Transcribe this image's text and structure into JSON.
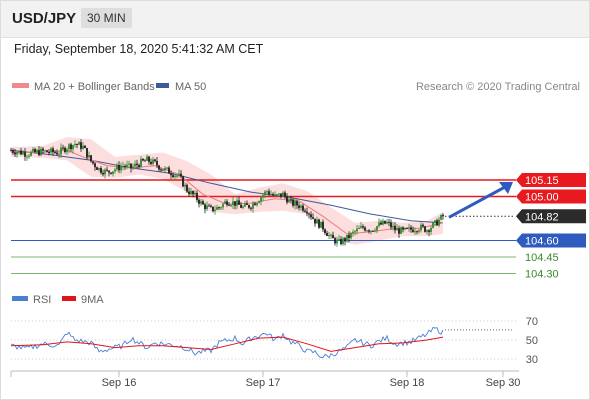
{
  "header": {
    "symbol": "USD/JPY",
    "timeframe": "30 MIN"
  },
  "timestamp": "Friday, September 18, 2020 5:41:32 AM CET",
  "legend": {
    "ma20_label": "MA 20 + Bollinger Bands",
    "ma50_label": "MA 50",
    "attribution": "Research © 2020 Trading Central",
    "rsi_label": "RSI",
    "rsi_ma_label": "9MA"
  },
  "colors": {
    "resistance": "#e8191f",
    "support_blue": "#2f5bbf",
    "support_green": "#7bb86d",
    "candle_up": "#2e8b2e",
    "candle_down": "#1a1a1a",
    "ma20": "#f07a7a",
    "band_fill": "#fbd3d3",
    "ma50": "#3d5a99",
    "rsi": "#4a7fd6",
    "rsi_ma": "#e0141b",
    "price_box": "#2b2b2b",
    "arrow": "#2f5bbf"
  },
  "chart_data": [
    {
      "type": "candlestick",
      "title": "USD/JPY",
      "ylim": [
        104.05,
        105.7
      ],
      "levels": [
        {
          "value": 105.15,
          "label": "105.15",
          "kind": "resistance"
        },
        {
          "value": 105.0,
          "label": "105.00",
          "kind": "resistance"
        },
        {
          "value": 104.82,
          "label": "104.82",
          "kind": "last-price"
        },
        {
          "value": 104.6,
          "label": "104.60",
          "kind": "pivot"
        },
        {
          "value": 104.45,
          "label": "104.45",
          "kind": "support"
        },
        {
          "value": 104.3,
          "label": "104.30",
          "kind": "support"
        }
      ],
      "close_path": [
        [
          0,
          105.42
        ],
        [
          4,
          105.39
        ],
        [
          8,
          105.41
        ],
        [
          12,
          105.4
        ],
        [
          14,
          105.45
        ],
        [
          16,
          105.48
        ],
        [
          18,
          105.45
        ],
        [
          20,
          105.32
        ],
        [
          22,
          105.25
        ],
        [
          24,
          105.22
        ],
        [
          26,
          105.25
        ],
        [
          28,
          105.28
        ],
        [
          30,
          105.26
        ],
        [
          32,
          105.3
        ],
        [
          34,
          105.33
        ],
        [
          36,
          105.3
        ],
        [
          38,
          105.25
        ],
        [
          40,
          105.22
        ],
        [
          42,
          105.18
        ],
        [
          44,
          105.06
        ],
        [
          46,
          105.0
        ],
        [
          48,
          104.92
        ],
        [
          50,
          104.88
        ],
        [
          52,
          104.9
        ],
        [
          54,
          104.96
        ],
        [
          56,
          104.94
        ],
        [
          58,
          104.9
        ],
        [
          60,
          104.92
        ],
        [
          62,
          104.98
        ],
        [
          64,
          105.05
        ],
        [
          66,
          105.0
        ],
        [
          68,
          105.02
        ],
        [
          70,
          104.94
        ],
        [
          72,
          104.92
        ],
        [
          74,
          104.88
        ],
        [
          76,
          104.78
        ],
        [
          78,
          104.72
        ],
        [
          80,
          104.62
        ],
        [
          82,
          104.58
        ],
        [
          84,
          104.62
        ],
        [
          86,
          104.68
        ],
        [
          88,
          104.72
        ],
        [
          90,
          104.7
        ],
        [
          92,
          104.74
        ],
        [
          94,
          104.76
        ],
        [
          96,
          104.7
        ],
        [
          98,
          104.68
        ],
        [
          100,
          104.7
        ],
        [
          102,
          104.72
        ],
        [
          104,
          104.7
        ],
        [
          106,
          104.75
        ],
        [
          108,
          104.82
        ]
      ],
      "ma20": [
        [
          0,
          105.4
        ],
        [
          8,
          105.4
        ],
        [
          14,
          105.42
        ],
        [
          18,
          105.36
        ],
        [
          24,
          105.28
        ],
        [
          30,
          105.26
        ],
        [
          36,
          105.28
        ],
        [
          42,
          105.2
        ],
        [
          48,
          105.02
        ],
        [
          54,
          104.93
        ],
        [
          60,
          104.94
        ],
        [
          66,
          104.98
        ],
        [
          72,
          104.96
        ],
        [
          78,
          104.82
        ],
        [
          84,
          104.66
        ],
        [
          90,
          104.68
        ],
        [
          96,
          104.71
        ],
        [
          102,
          104.71
        ],
        [
          108,
          104.76
        ]
      ],
      "bb_upper": [
        [
          0,
          105.45
        ],
        [
          8,
          105.46
        ],
        [
          14,
          105.54
        ],
        [
          20,
          105.52
        ],
        [
          26,
          105.36
        ],
        [
          32,
          105.38
        ],
        [
          38,
          105.4
        ],
        [
          44,
          105.32
        ],
        [
          50,
          105.2
        ],
        [
          56,
          105.02
        ],
        [
          62,
          105.08
        ],
        [
          68,
          105.12
        ],
        [
          74,
          105.05
        ],
        [
          80,
          104.9
        ],
        [
          86,
          104.76
        ],
        [
          92,
          104.78
        ],
        [
          98,
          104.76
        ],
        [
          104,
          104.78
        ],
        [
          108,
          104.86
        ]
      ],
      "bb_lower": [
        [
          0,
          105.36
        ],
        [
          8,
          105.35
        ],
        [
          14,
          105.33
        ],
        [
          20,
          105.18
        ],
        [
          26,
          105.17
        ],
        [
          32,
          105.2
        ],
        [
          38,
          105.16
        ],
        [
          44,
          105.04
        ],
        [
          50,
          104.86
        ],
        [
          56,
          104.84
        ],
        [
          62,
          104.86
        ],
        [
          68,
          104.87
        ],
        [
          74,
          104.84
        ],
        [
          80,
          104.62
        ],
        [
          86,
          104.56
        ],
        [
          92,
          104.6
        ],
        [
          98,
          104.64
        ],
        [
          104,
          104.64
        ],
        [
          108,
          104.66
        ]
      ],
      "ma50": [
        [
          0,
          105.42
        ],
        [
          10,
          105.38
        ],
        [
          20,
          105.33
        ],
        [
          30,
          105.26
        ],
        [
          40,
          105.21
        ],
        [
          50,
          105.12
        ],
        [
          60,
          105.04
        ],
        [
          70,
          104.99
        ],
        [
          80,
          104.92
        ],
        [
          90,
          104.84
        ],
        [
          100,
          104.78
        ],
        [
          108,
          104.76
        ]
      ],
      "forecast_arrow": {
        "from": 104.82,
        "to": 105.15
      }
    },
    {
      "type": "line",
      "title": "RSI",
      "ylim": [
        20,
        80
      ],
      "y_ticks": [
        70,
        50,
        30
      ],
      "series": [
        {
          "name": "RSI",
          "values": [
            [
              0,
              44
            ],
            [
              4,
              41
            ],
            [
              8,
              46
            ],
            [
              12,
              44
            ],
            [
              14,
              58
            ],
            [
              16,
              50
            ],
            [
              20,
              47
            ],
            [
              22,
              38
            ],
            [
              24,
              40
            ],
            [
              28,
              44
            ],
            [
              30,
              52
            ],
            [
              34,
              42
            ],
            [
              36,
              47
            ],
            [
              40,
              45
            ],
            [
              42,
              44
            ],
            [
              44,
              41
            ],
            [
              46,
              36
            ],
            [
              48,
              38
            ],
            [
              50,
              39
            ],
            [
              52,
              47
            ],
            [
              56,
              52
            ],
            [
              58,
              46
            ],
            [
              60,
              52
            ],
            [
              62,
              55
            ],
            [
              64,
              57
            ],
            [
              66,
              50
            ],
            [
              68,
              56
            ],
            [
              70,
              48
            ],
            [
              72,
              44
            ],
            [
              74,
              38
            ],
            [
              76,
              37
            ],
            [
              78,
              32
            ],
            [
              80,
              34
            ],
            [
              84,
              42
            ],
            [
              86,
              50
            ],
            [
              88,
              47
            ],
            [
              90,
              44
            ],
            [
              92,
              49
            ],
            [
              94,
              52
            ],
            [
              96,
              46
            ],
            [
              98,
              47
            ],
            [
              100,
              48
            ],
            [
              102,
              52
            ],
            [
              104,
              56
            ],
            [
              106,
              62
            ],
            [
              108,
              58
            ]
          ]
        },
        {
          "name": "9MA",
          "values": [
            [
              0,
              44
            ],
            [
              8,
              45
            ],
            [
              14,
              48
            ],
            [
              20,
              46
            ],
            [
              26,
              42
            ],
            [
              32,
              44
            ],
            [
              38,
              44
            ],
            [
              44,
              42
            ],
            [
              50,
              40
            ],
            [
              56,
              46
            ],
            [
              62,
              52
            ],
            [
              68,
              53
            ],
            [
              74,
              46
            ],
            [
              80,
              38
            ],
            [
              86,
              42
            ],
            [
              92,
              46
            ],
            [
              98,
              47
            ],
            [
              104,
              50
            ],
            [
              108,
              53
            ]
          ]
        }
      ]
    }
  ],
  "x_axis": {
    "ticks": [
      {
        "pos": 27,
        "label": "Sep 16"
      },
      {
        "pos": 63,
        "label": "Sep 17"
      },
      {
        "pos": 99,
        "label": "Sep 18"
      },
      {
        "pos": 123,
        "label": "Sep 30"
      }
    ]
  }
}
